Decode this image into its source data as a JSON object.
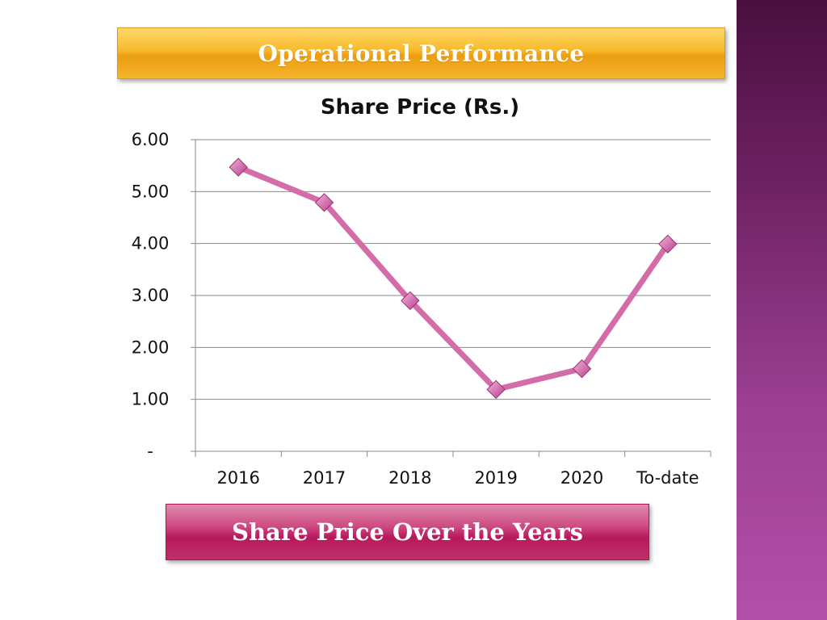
{
  "header": {
    "title": "Operational Performance"
  },
  "footer": {
    "caption": "Share Price Over the Years"
  },
  "colors": {
    "line": "#d36ca8",
    "marker_light": "#f6b4dc",
    "marker_dark": "#b43f8c",
    "grid": "#8a8a8a",
    "side_panel": "#7a2a70"
  },
  "chart_data": {
    "type": "line",
    "title": "Share Price (Rs.)",
    "categories": [
      "2016",
      "2017",
      "2018",
      "2019",
      "2020",
      "To-date"
    ],
    "values": [
      5.47,
      4.79,
      2.9,
      1.19,
      1.59,
      3.99
    ],
    "ylim": [
      0,
      6
    ],
    "yticks": [
      0,
      1,
      2,
      3,
      4,
      5,
      6
    ],
    "ytick_labels": [
      "-",
      "1.00",
      "2.00",
      "3.00",
      "4.00",
      "5.00",
      "6.00"
    ],
    "grid": true,
    "marker": "diamond",
    "xlabel": "",
    "ylabel": ""
  }
}
